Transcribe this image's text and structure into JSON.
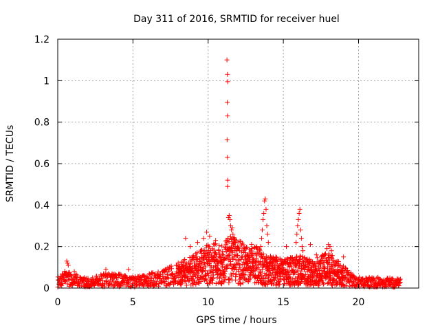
{
  "chart_data": {
    "type": "scatter",
    "title": "Day 311 of 2016, SRMTID for receiver huel",
    "xlabel": "GPS time / hours",
    "ylabel": "SRMTID / TECUs",
    "xlim": [
      0,
      24
    ],
    "ylim": [
      0,
      1.2
    ],
    "x_ticks": [
      0,
      5,
      10,
      15,
      20
    ],
    "x_tick_labels": [
      "0",
      "5",
      "10",
      "15",
      "20"
    ],
    "y_ticks": [
      0,
      0.2,
      0.4,
      0.6,
      0.8,
      1.0,
      1.2
    ],
    "y_tick_labels": [
      "0",
      "0.2",
      "0.4",
      "0.6",
      "0.8",
      "1",
      "1.2"
    ],
    "grid": true,
    "marker": "+",
    "color": "#ff0000",
    "background_profile": [
      [
        0.0,
        0.03
      ],
      [
        0.5,
        0.05
      ],
      [
        1.0,
        0.04
      ],
      [
        2.0,
        0.03
      ],
      [
        3.0,
        0.04
      ],
      [
        4.0,
        0.04
      ],
      [
        5.0,
        0.03
      ],
      [
        6.0,
        0.04
      ],
      [
        7.0,
        0.05
      ],
      [
        8.0,
        0.07
      ],
      [
        9.0,
        0.09
      ],
      [
        10.0,
        0.12
      ],
      [
        11.0,
        0.13
      ],
      [
        11.5,
        0.15
      ],
      [
        12.0,
        0.13
      ],
      [
        13.0,
        0.12
      ],
      [
        14.0,
        0.09
      ],
      [
        15.0,
        0.08
      ],
      [
        16.0,
        0.09
      ],
      [
        17.0,
        0.08
      ],
      [
        18.0,
        0.1
      ],
      [
        19.0,
        0.06
      ],
      [
        20.0,
        0.03
      ],
      [
        21.0,
        0.03
      ],
      [
        22.0,
        0.03
      ],
      [
        22.8,
        0.025
      ]
    ],
    "points": [
      [
        11.25,
        1.1
      ],
      [
        11.28,
        1.03
      ],
      [
        11.3,
        0.995
      ],
      [
        11.27,
        0.895
      ],
      [
        11.29,
        0.83
      ],
      [
        11.26,
        0.715
      ],
      [
        11.28,
        0.63
      ],
      [
        11.3,
        0.52
      ],
      [
        11.29,
        0.49
      ],
      [
        11.4,
        0.35
      ],
      [
        11.35,
        0.34
      ],
      [
        11.45,
        0.33
      ],
      [
        11.5,
        0.3
      ],
      [
        11.55,
        0.28
      ],
      [
        11.6,
        0.29
      ],
      [
        11.65,
        0.26
      ],
      [
        11.7,
        0.24
      ],
      [
        11.75,
        0.22
      ],
      [
        11.8,
        0.2
      ],
      [
        11.9,
        0.18
      ],
      [
        13.8,
        0.43
      ],
      [
        13.75,
        0.42
      ],
      [
        13.85,
        0.38
      ],
      [
        13.7,
        0.36
      ],
      [
        13.65,
        0.33
      ],
      [
        13.9,
        0.3
      ],
      [
        13.6,
        0.28
      ],
      [
        13.95,
        0.26
      ],
      [
        13.55,
        0.24
      ],
      [
        14.0,
        0.22
      ],
      [
        13.5,
        0.2
      ],
      [
        16.1,
        0.38
      ],
      [
        16.05,
        0.36
      ],
      [
        16.0,
        0.33
      ],
      [
        15.95,
        0.3
      ],
      [
        16.15,
        0.28
      ],
      [
        15.9,
        0.26
      ],
      [
        16.2,
        0.24
      ],
      [
        15.85,
        0.22
      ],
      [
        16.25,
        0.2
      ],
      [
        16.3,
        0.18
      ],
      [
        18.0,
        0.21
      ],
      [
        18.1,
        0.2
      ],
      [
        17.9,
        0.19
      ],
      [
        18.2,
        0.18
      ],
      [
        16.8,
        0.21
      ],
      [
        17.2,
        0.16
      ],
      [
        19.0,
        0.15
      ],
      [
        9.9,
        0.27
      ],
      [
        9.7,
        0.24
      ],
      [
        10.1,
        0.25
      ],
      [
        8.5,
        0.24
      ],
      [
        9.3,
        0.22
      ],
      [
        10.5,
        0.23
      ],
      [
        8.8,
        0.2
      ],
      [
        12.5,
        0.17
      ],
      [
        13.2,
        0.2
      ],
      [
        15.2,
        0.2
      ],
      [
        14.5,
        0.15
      ],
      [
        0.6,
        0.13
      ],
      [
        0.65,
        0.12
      ],
      [
        0.7,
        0.11
      ],
      [
        1.1,
        0.08
      ],
      [
        3.2,
        0.09
      ],
      [
        4.7,
        0.09
      ],
      [
        10.6,
        0.05
      ],
      [
        11.1,
        0.04
      ],
      [
        10.9,
        0.02
      ],
      [
        12.1,
        0.04
      ],
      [
        14.2,
        0.02
      ],
      [
        16.6,
        0.02
      ],
      [
        17.4,
        0.03
      ],
      [
        13.3,
        0.05
      ]
    ]
  }
}
